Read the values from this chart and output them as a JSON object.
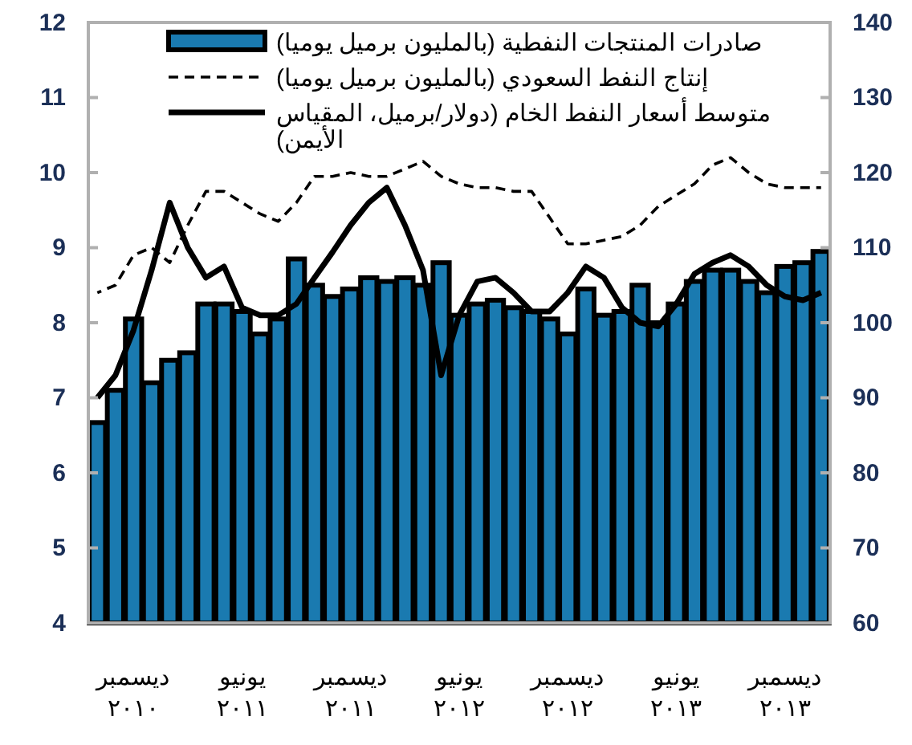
{
  "chart_data": {
    "type": "bar",
    "categories": [
      null,
      null,
      "ديسمبر ٢٠١٠",
      null,
      null,
      null,
      null,
      null,
      "يونيو ٢٠١١",
      null,
      null,
      null,
      null,
      null,
      "ديسمبر ٢٠١١",
      null,
      null,
      null,
      null,
      null,
      "يونيو ٢٠١٢",
      null,
      null,
      null,
      null,
      null,
      "ديسمبر ٢٠١٢",
      null,
      null,
      null,
      null,
      null,
      "يونيو ٢٠١٣",
      null,
      null,
      null,
      null,
      null,
      "ديسمبر ٢٠١٣",
      null,
      null
    ],
    "series": [
      {
        "name": "صادرات المنتجات النفطية (بالمليون برميل يوميا)",
        "color": "#1a7ab0",
        "values": [
          6.67,
          7.1,
          8.05,
          7.2,
          7.5,
          7.6,
          8.25,
          8.25,
          8.15,
          7.85,
          8.05,
          8.85,
          8.5,
          8.35,
          8.45,
          8.6,
          8.55,
          8.6,
          8.5,
          8.8,
          8.1,
          8.25,
          8.3,
          8.2,
          8.15,
          8.05,
          7.85,
          8.45,
          8.1,
          8.15,
          8.5,
          8.0,
          8.25,
          8.55,
          8.7,
          8.7,
          8.55,
          8.4,
          8.75,
          8.8,
          8.95
        ]
      },
      {
        "name": "إنتاج النفط السعودي (بالمليون برميل يوميا)",
        "type": "line",
        "color": "#000000",
        "line_style": "dashed",
        "values": [
          8.4,
          8.5,
          8.9,
          9.0,
          8.8,
          9.3,
          9.75,
          9.75,
          9.6,
          9.45,
          9.35,
          9.6,
          9.95,
          9.95,
          10.0,
          9.95,
          9.95,
          10.05,
          10.15,
          9.95,
          9.85,
          9.8,
          9.8,
          9.75,
          9.75,
          9.4,
          9.05,
          9.05,
          9.1,
          9.15,
          9.3,
          9.55,
          9.7,
          9.85,
          10.1,
          10.2,
          10.0,
          9.85,
          9.8,
          9.8,
          9.8
        ]
      },
      {
        "name": "متوسط أسعار النفط الخام (دولار/برميل، المقياس الأيمن)",
        "type": "line",
        "axis": "y2",
        "color": "#000000",
        "line_style": "solid",
        "values": [
          90,
          93,
          99,
          107,
          116,
          110,
          106,
          107.5,
          102,
          101,
          101,
          102.5,
          106,
          109.4,
          113,
          116,
          118,
          113,
          107,
          93,
          101,
          105.5,
          106,
          104,
          101.5,
          101.5,
          104,
          107.5,
          106,
          102,
          100,
          99.5,
          102.5,
          106.5,
          108,
          109,
          107.5,
          105,
          103.5,
          103,
          104
        ]
      }
    ],
    "ylim": [
      4,
      12
    ],
    "yticks": [
      4,
      5,
      6,
      7,
      8,
      9,
      10,
      11,
      12
    ],
    "y2lim": [
      60,
      140
    ],
    "y2ticks": [
      60,
      70,
      80,
      90,
      100,
      110,
      120,
      130,
      140
    ],
    "legend": "top right",
    "grid": false
  }
}
